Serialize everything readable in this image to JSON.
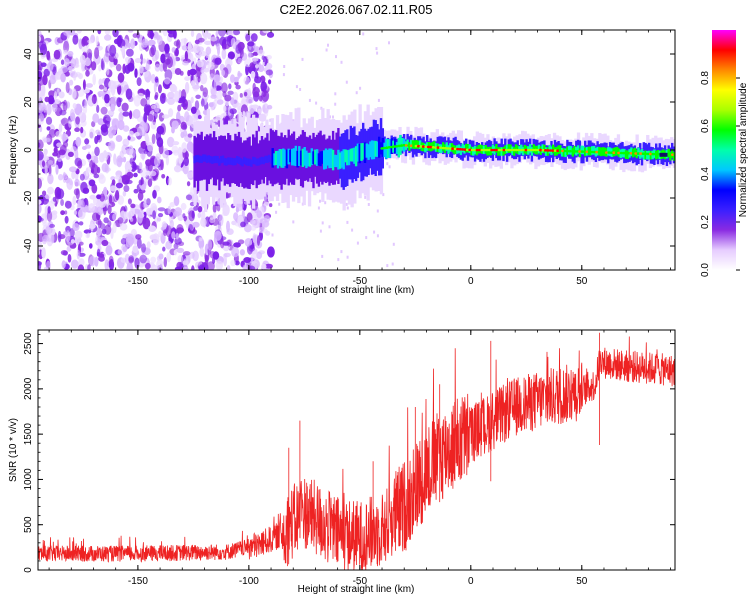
{
  "title": "C2E2.2026.067.02.11.R05",
  "chart_data": [
    {
      "type": "heatmap",
      "xlabel": "Height of straight line (km)",
      "ylabel": "Frequency (Hz)",
      "xlim": [
        -195,
        92
      ],
      "ylim": [
        -50,
        50
      ],
      "xticks": [
        -150,
        -100,
        -50,
        0,
        50
      ],
      "yticks": [
        -40,
        -20,
        0,
        20,
        40
      ],
      "ridge_frequency": [
        {
          "x": -120,
          "y": -4
        },
        {
          "x": -100,
          "y": -5
        },
        {
          "x": -80,
          "y": -3
        },
        {
          "x": -60,
          "y": -4
        },
        {
          "x": -45,
          "y": 0
        },
        {
          "x": -30,
          "y": 2
        },
        {
          "x": -15,
          "y": 1
        },
        {
          "x": 0,
          "y": 0
        },
        {
          "x": 30,
          "y": 0
        },
        {
          "x": 60,
          "y": -1
        },
        {
          "x": 92,
          "y": -2
        }
      ],
      "noise_region_x": [
        -195,
        -95
      ],
      "colorbar": {
        "label": "Normalized spectral amplitude",
        "range": [
          0,
          1
        ],
        "ticks": [
          "0.0",
          "0.2",
          "0.4",
          "0.6",
          "0.8"
        ],
        "colormap": [
          "#ffffff",
          "#e6ccff",
          "#8a2be2",
          "#3a1fff",
          "#0000ff",
          "#00c8ff",
          "#00ffaa",
          "#00ff00",
          "#aaff00",
          "#ffff00",
          "#ff8800",
          "#ff0000",
          "#ff00ff"
        ]
      }
    },
    {
      "type": "line",
      "xlabel": "Height of straight line (km)",
      "ylabel": "SNR (10 * v/v)",
      "xlim": [
        -195,
        92
      ],
      "ylim": [
        0,
        2650
      ],
      "xticks": [
        -150,
        -100,
        -50,
        0,
        50
      ],
      "yticks": [
        0,
        500,
        1000,
        1500,
        2000,
        2500
      ],
      "line_color": "#ee2222",
      "trend": [
        {
          "x": -195,
          "y": 180
        },
        {
          "x": -150,
          "y": 180
        },
        {
          "x": -110,
          "y": 200
        },
        {
          "x": -95,
          "y": 280
        },
        {
          "x": -85,
          "y": 400
        },
        {
          "x": -75,
          "y": 650
        },
        {
          "x": -60,
          "y": 400
        },
        {
          "x": -50,
          "y": 350
        },
        {
          "x": -40,
          "y": 450
        },
        {
          "x": -30,
          "y": 700
        },
        {
          "x": -20,
          "y": 1100
        },
        {
          "x": -10,
          "y": 1350
        },
        {
          "x": 0,
          "y": 1500
        },
        {
          "x": 10,
          "y": 1650
        },
        {
          "x": 20,
          "y": 1800
        },
        {
          "x": 35,
          "y": 1900
        },
        {
          "x": 50,
          "y": 1980
        },
        {
          "x": 56,
          "y": 2050
        },
        {
          "x": 58,
          "y": 2300
        },
        {
          "x": 70,
          "y": 2250
        },
        {
          "x": 80,
          "y": 2230
        },
        {
          "x": 92,
          "y": 2200
        }
      ],
      "spikes": [
        {
          "x": -82,
          "y": 1350
        },
        {
          "x": -77,
          "y": 1650
        },
        {
          "x": -44,
          "y": 1200
        },
        {
          "x": -25,
          "y": 1800
        },
        {
          "x": -14,
          "y": 2050
        },
        {
          "x": 9,
          "y": 2530
        },
        {
          "x": 58,
          "y": 2620
        }
      ]
    }
  ]
}
